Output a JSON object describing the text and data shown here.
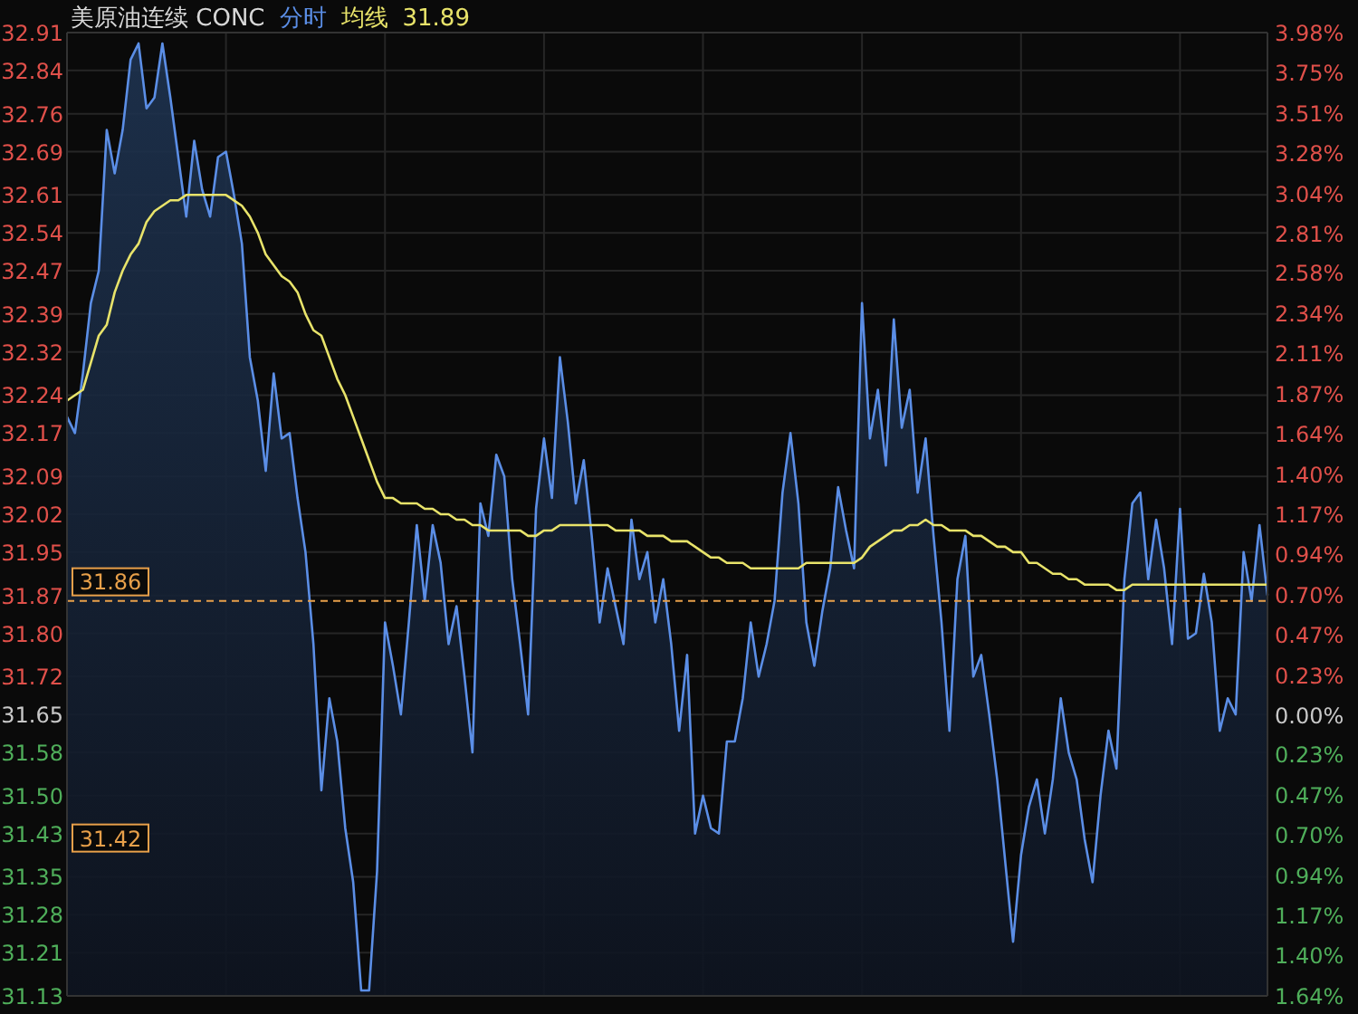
{
  "chart_data": {
    "type": "area",
    "title": "美原油连续 CONC",
    "categories": [
      null,
      null,
      null,
      null,
      null,
      null,
      null,
      null,
      null,
      null,
      null,
      null,
      null,
      null,
      null,
      null,
      null,
      null,
      null,
      null,
      null,
      null,
      null,
      null,
      null,
      null,
      null,
      null,
      null,
      null,
      null,
      null,
      null,
      null,
      null,
      null,
      null,
      null,
      null,
      null,
      null,
      null,
      null,
      null,
      null,
      null,
      null,
      null,
      null,
      null,
      null,
      null,
      null,
      null,
      null,
      null,
      null,
      null,
      null,
      null,
      null,
      null,
      null,
      null,
      null,
      null,
      null,
      null,
      null,
      null,
      null,
      null,
      null,
      null,
      null,
      null,
      null,
      null,
      null,
      null,
      null,
      null,
      null,
      null,
      null,
      null,
      null,
      null,
      null,
      null,
      null,
      null,
      null,
      null,
      null,
      null,
      null,
      null,
      null,
      null,
      null,
      null,
      null,
      null,
      null,
      null,
      null,
      null,
      null,
      null,
      null,
      null,
      null,
      null,
      null,
      null,
      null,
      null,
      null,
      null,
      null,
      null,
      null,
      null,
      null,
      null,
      null,
      null,
      null,
      null,
      null,
      null,
      null,
      null,
      null,
      null,
      null,
      null,
      null,
      null,
      null,
      null,
      null,
      null,
      null,
      null,
      null,
      null,
      null,
      null,
      null,
      null
    ],
    "series": [
      {
        "name": "分时",
        "color": "#5b8ee6",
        "values": [
          32.2,
          32.17,
          32.28,
          32.41,
          32.47,
          32.73,
          32.65,
          32.73,
          32.86,
          32.89,
          32.77,
          32.79,
          32.89,
          32.79,
          32.68,
          32.57,
          32.71,
          32.62,
          32.57,
          32.68,
          32.69,
          32.61,
          32.52,
          32.31,
          32.23,
          32.1,
          32.28,
          32.16,
          32.17,
          32.05,
          31.95,
          31.78,
          31.51,
          31.68,
          31.6,
          31.44,
          31.34,
          31.14,
          31.14,
          31.36,
          31.82,
          31.74,
          31.65,
          31.82,
          32.0,
          31.86,
          32.0,
          31.93,
          31.78,
          31.85,
          31.72,
          31.58,
          32.04,
          31.98,
          32.13,
          32.09,
          31.9,
          31.78,
          31.65,
          32.03,
          32.16,
          32.05,
          32.31,
          32.19,
          32.04,
          32.12,
          31.98,
          31.82,
          31.92,
          31.85,
          31.78,
          32.01,
          31.9,
          31.95,
          31.82,
          31.9,
          31.78,
          31.62,
          31.76,
          31.43,
          31.5,
          31.44,
          31.43,
          31.6,
          31.6,
          31.68,
          31.82,
          31.72,
          31.78,
          31.86,
          32.06,
          32.17,
          32.04,
          31.82,
          31.74,
          31.84,
          31.92,
          32.07,
          31.99,
          31.92,
          32.41,
          32.16,
          32.25,
          32.11,
          32.38,
          32.18,
          32.25,
          32.06,
          32.16,
          31.98,
          31.82,
          31.62,
          31.9,
          31.98,
          31.72,
          31.76,
          31.65,
          31.53,
          31.38,
          31.23,
          31.39,
          31.48,
          31.53,
          31.43,
          31.53,
          31.68,
          31.58,
          31.53,
          31.42,
          31.34,
          31.5,
          31.62,
          31.55,
          31.9,
          32.04,
          32.06,
          31.9,
          32.01,
          31.92,
          31.78,
          32.03,
          31.79,
          31.8,
          31.91,
          31.82,
          31.62,
          31.68,
          31.65,
          31.95,
          31.86,
          32.0,
          31.87
        ]
      },
      {
        "name": "均线",
        "type": "line",
        "color": "#e8e36a",
        "values": [
          32.23,
          32.24,
          32.25,
          32.3,
          32.35,
          32.37,
          32.43,
          32.47,
          32.5,
          32.52,
          32.56,
          32.58,
          32.59,
          32.6,
          32.6,
          32.61,
          32.61,
          32.61,
          32.61,
          32.61,
          32.61,
          32.6,
          32.59,
          32.57,
          32.54,
          32.5,
          32.48,
          32.46,
          32.45,
          32.43,
          32.39,
          32.36,
          32.35,
          32.31,
          32.27,
          32.24,
          32.2,
          32.16,
          32.12,
          32.08,
          32.05,
          32.05,
          32.04,
          32.04,
          32.04,
          32.03,
          32.03,
          32.02,
          32.02,
          32.01,
          32.01,
          32.0,
          32.0,
          31.99,
          31.99,
          31.99,
          31.99,
          31.99,
          31.98,
          31.98,
          31.99,
          31.99,
          32.0,
          32.0,
          32.0,
          32.0,
          32.0,
          32.0,
          32.0,
          31.99,
          31.99,
          31.99,
          31.99,
          31.98,
          31.98,
          31.98,
          31.97,
          31.97,
          31.97,
          31.96,
          31.95,
          31.94,
          31.94,
          31.93,
          31.93,
          31.93,
          31.92,
          31.92,
          31.92,
          31.92,
          31.92,
          31.92,
          31.92,
          31.93,
          31.93,
          31.93,
          31.93,
          31.93,
          31.93,
          31.93,
          31.94,
          31.96,
          31.97,
          31.98,
          31.99,
          31.99,
          32.0,
          32.0,
          32.01,
          32.0,
          32.0,
          31.99,
          31.99,
          31.99,
          31.98,
          31.98,
          31.97,
          31.96,
          31.96,
          31.95,
          31.95,
          31.93,
          31.93,
          31.92,
          31.91,
          31.91,
          31.9,
          31.9,
          31.89,
          31.89,
          31.89,
          31.89,
          31.88,
          31.88,
          31.89,
          31.89,
          31.89,
          31.89,
          31.89,
          31.89,
          31.89,
          31.89,
          31.89,
          31.89,
          31.89,
          31.89,
          31.89,
          31.89,
          31.89,
          31.89,
          31.89,
          31.89
        ]
      }
    ],
    "ylim": [
      31.13,
      32.91
    ],
    "yticks": [
      32.91,
      32.84,
      32.76,
      32.69,
      32.61,
      32.54,
      32.47,
      32.39,
      32.32,
      32.24,
      32.17,
      32.09,
      32.02,
      31.95,
      31.87,
      {
        "value": 31.8,
        "label": "31.80"
      },
      31.72,
      31.65,
      31.58,
      {
        "value": 31.5,
        "label": "31.50"
      },
      31.43,
      31.35,
      31.28,
      31.21,
      31.13
    ],
    "y2lim": [
      -1.64,
      3.98
    ],
    "y2ticks": [
      {
        "value": 3.98,
        "label": "3.98%"
      },
      {
        "value": 3.75,
        "label": "3.75%"
      },
      {
        "value": 3.51,
        "label": "3.51%"
      },
      {
        "value": 3.28,
        "label": "3.28%"
      },
      {
        "value": 3.04,
        "label": "3.04%"
      },
      {
        "value": 2.81,
        "label": "2.81%"
      },
      {
        "value": 2.58,
        "label": "2.58%"
      },
      {
        "value": 2.34,
        "label": "2.34%"
      },
      {
        "value": 2.11,
        "label": "2.11%"
      },
      {
        "value": 1.87,
        "label": "1.87%"
      },
      {
        "value": 1.64,
        "label": "1.64%"
      },
      {
        "value": 1.4,
        "label": "1.40%"
      },
      {
        "value": 1.17,
        "label": "1.17%"
      },
      {
        "value": 0.94,
        "label": "0.94%"
      },
      {
        "value": 0.7,
        "label": "0.70%"
      },
      {
        "value": 0.47,
        "label": "0.47%"
      },
      {
        "value": 0.23,
        "label": "0.23%"
      },
      {
        "value": 0,
        "label": "0.00%"
      },
      {
        "value": -0.23,
        "label": "0.23%"
      },
      {
        "value": -0.47,
        "label": "0.47%"
      },
      {
        "value": -0.7,
        "label": "0.70%"
      },
      {
        "value": -0.94,
        "label": "0.94%"
      },
      {
        "value": -1.17,
        "label": "1.17%"
      },
      {
        "value": -1.4,
        "label": "1.40%"
      },
      {
        "value": -1.64,
        "label": "1.64%"
      }
    ],
    "ref_lines": [
      {
        "axis": "y",
        "value": 31.86,
        "label": "31.86",
        "color": "#e8a04a",
        "line_style": "dashed"
      }
    ],
    "annotations": [
      "31.89",
      {
        "text": "31.42",
        "y": 31.42
      }
    ],
    "grid": true,
    "legend": "top left"
  }
}
